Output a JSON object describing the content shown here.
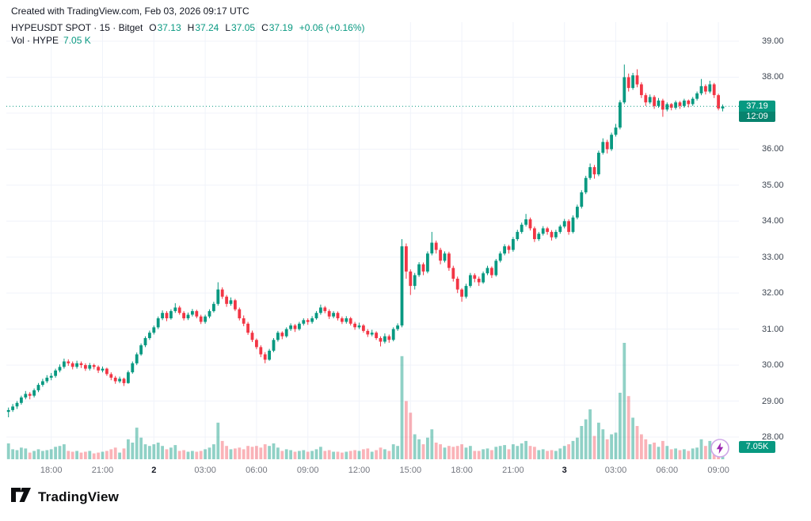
{
  "attribution": "Created with TradingView.com, Feb 03, 2026 09:17 UTC",
  "legend": {
    "symbol_title": "HYPEUSDT SPOT · 15 · Bitget",
    "open_label": "O",
    "open": "37.13",
    "high_label": "H",
    "high": "37.24",
    "low_label": "L",
    "low": "37.05",
    "close_label": "C",
    "close": "37.19",
    "change": "+0.06 (+0.16%)",
    "volume_label": "Vol · HYPE",
    "volume_value": "7.05 K"
  },
  "badges": {
    "last_price": "37.19",
    "countdown": "12:09",
    "volume": "7.05K"
  },
  "footer": {
    "logo_text": "TradingView"
  },
  "colors": {
    "up": "#089981",
    "down": "#f23645",
    "vol_up": "rgba(8,153,129,0.45)",
    "vol_down": "rgba(242,54,69,0.38)",
    "grid": "#f0f3fa",
    "last_price_line": "#089981"
  },
  "chart_data": {
    "type": "candlestick",
    "title": "HYPEUSDT SPOT · 15 · Bitget",
    "symbol": "HYPEUSDT",
    "exchange": "Bitget",
    "interval_minutes": 15,
    "last_price": 37.19,
    "last_volume_k": 7.05,
    "price_axis_visible_range": [
      27.4,
      39.5
    ],
    "price_ticks": [
      "39.00",
      "38.00",
      "37.00",
      "36.00",
      "35.00",
      "34.00",
      "33.00",
      "32.00",
      "31.00",
      "30.00",
      "29.00",
      "28.00"
    ],
    "time_ticks": [
      {
        "idx": 10,
        "label": "18:00",
        "bold": false
      },
      {
        "idx": 22,
        "label": "21:00",
        "bold": false
      },
      {
        "idx": 34,
        "label": "2",
        "bold": true
      },
      {
        "idx": 46,
        "label": "03:00",
        "bold": false
      },
      {
        "idx": 58,
        "label": "06:00",
        "bold": false
      },
      {
        "idx": 70,
        "label": "09:00",
        "bold": false
      },
      {
        "idx": 82,
        "label": "12:00",
        "bold": false
      },
      {
        "idx": 94,
        "label": "15:00",
        "bold": false
      },
      {
        "idx": 106,
        "label": "18:00",
        "bold": false
      },
      {
        "idx": 118,
        "label": "21:00",
        "bold": false
      },
      {
        "idx": 130,
        "label": "3",
        "bold": true
      },
      {
        "idx": 142,
        "label": "03:00",
        "bold": false
      },
      {
        "idx": 154,
        "label": "06:00",
        "bold": false
      },
      {
        "idx": 166,
        "label": "09:00",
        "bold": false
      }
    ],
    "columns": [
      "open",
      "high",
      "low",
      "close",
      "volume_k"
    ],
    "candles": [
      [
        28.7,
        28.82,
        28.55,
        28.75,
        9.5
      ],
      [
        28.75,
        28.92,
        28.7,
        28.85,
        6
      ],
      [
        28.85,
        29.0,
        28.78,
        28.95,
        5.5
      ],
      [
        28.95,
        29.15,
        28.9,
        29.1,
        7
      ],
      [
        29.1,
        29.28,
        29.05,
        29.2,
        6.5
      ],
      [
        29.2,
        29.25,
        29.05,
        29.15,
        4
      ],
      [
        29.15,
        29.35,
        29.1,
        29.3,
        5
      ],
      [
        29.3,
        29.5,
        29.25,
        29.45,
        6
      ],
      [
        29.45,
        29.62,
        29.4,
        29.55,
        5
      ],
      [
        29.55,
        29.72,
        29.5,
        29.65,
        5.5
      ],
      [
        29.65,
        29.78,
        29.58,
        29.7,
        6
      ],
      [
        29.7,
        29.9,
        29.65,
        29.85,
        7.5
      ],
      [
        29.85,
        30.02,
        29.8,
        29.95,
        8
      ],
      [
        29.95,
        30.18,
        29.9,
        30.1,
        9
      ],
      [
        30.1,
        30.16,
        29.98,
        30.05,
        5
      ],
      [
        30.05,
        30.1,
        29.88,
        29.95,
        4.5
      ],
      [
        29.95,
        30.12,
        29.9,
        30.05,
        5
      ],
      [
        30.05,
        30.1,
        29.92,
        30.0,
        4
      ],
      [
        30.0,
        30.05,
        29.84,
        29.9,
        4.5
      ],
      [
        29.9,
        30.06,
        29.85,
        30.0,
        5
      ],
      [
        30.0,
        30.04,
        29.88,
        29.95,
        3.5
      ],
      [
        29.95,
        29.99,
        29.78,
        29.85,
        4
      ],
      [
        29.85,
        29.96,
        29.8,
        29.9,
        4.5
      ],
      [
        29.9,
        29.93,
        29.7,
        29.75,
        5
      ],
      [
        29.75,
        29.8,
        29.58,
        29.65,
        6
      ],
      [
        29.65,
        29.7,
        29.48,
        29.55,
        7
      ],
      [
        29.55,
        29.68,
        29.5,
        29.62,
        4
      ],
      [
        29.62,
        29.65,
        29.42,
        29.5,
        6.5
      ],
      [
        29.5,
        29.85,
        29.48,
        29.8,
        12
      ],
      [
        29.8,
        30.1,
        29.76,
        30.05,
        10
      ],
      [
        30.05,
        30.35,
        30.0,
        30.3,
        19
      ],
      [
        30.3,
        30.6,
        30.26,
        30.55,
        13
      ],
      [
        30.55,
        30.8,
        30.5,
        30.75,
        9
      ],
      [
        30.75,
        30.96,
        30.7,
        30.9,
        8
      ],
      [
        30.9,
        31.1,
        30.85,
        31.05,
        9
      ],
      [
        31.05,
        31.35,
        31.0,
        31.3,
        10
      ],
      [
        31.3,
        31.52,
        31.25,
        31.45,
        8
      ],
      [
        31.45,
        31.5,
        31.22,
        31.3,
        6
      ],
      [
        31.3,
        31.55,
        31.26,
        31.5,
        7
      ],
      [
        31.5,
        31.72,
        31.45,
        31.6,
        8.5
      ],
      [
        31.6,
        31.65,
        31.4,
        31.45,
        5
      ],
      [
        31.45,
        31.5,
        31.24,
        31.3,
        5.5
      ],
      [
        31.3,
        31.46,
        31.25,
        31.4,
        4.5
      ],
      [
        31.4,
        31.56,
        31.35,
        31.5,
        5
      ],
      [
        31.5,
        31.54,
        31.3,
        31.35,
        4.5
      ],
      [
        31.35,
        31.4,
        31.14,
        31.2,
        5
      ],
      [
        31.2,
        31.4,
        31.15,
        31.35,
        6
      ],
      [
        31.35,
        31.55,
        31.3,
        31.5,
        7
      ],
      [
        31.5,
        31.76,
        31.46,
        31.7,
        9
      ],
      [
        31.7,
        32.3,
        31.65,
        32.1,
        22
      ],
      [
        32.1,
        32.16,
        31.84,
        31.9,
        11
      ],
      [
        31.9,
        31.95,
        31.62,
        31.7,
        8
      ],
      [
        31.7,
        31.88,
        31.65,
        31.8,
        6
      ],
      [
        31.8,
        31.84,
        31.5,
        31.55,
        6.5
      ],
      [
        31.55,
        31.6,
        31.24,
        31.3,
        7
      ],
      [
        31.3,
        31.38,
        31.08,
        31.15,
        6
      ],
      [
        31.15,
        31.2,
        30.84,
        30.9,
        8
      ],
      [
        30.9,
        30.96,
        30.64,
        30.7,
        7.5
      ],
      [
        30.7,
        30.74,
        30.44,
        30.5,
        8
      ],
      [
        30.5,
        30.55,
        30.22,
        30.3,
        7
      ],
      [
        30.3,
        30.36,
        30.05,
        30.15,
        9
      ],
      [
        30.15,
        30.45,
        30.12,
        30.4,
        8
      ],
      [
        30.4,
        30.75,
        30.36,
        30.7,
        9.5
      ],
      [
        30.7,
        30.95,
        30.65,
        30.9,
        7
      ],
      [
        30.9,
        30.94,
        30.72,
        30.8,
        5
      ],
      [
        30.8,
        31.05,
        30.76,
        31.0,
        6
      ],
      [
        31.0,
        31.16,
        30.95,
        31.1,
        5.5
      ],
      [
        31.1,
        31.14,
        30.92,
        31.0,
        4.5
      ],
      [
        31.0,
        31.2,
        30.96,
        31.15,
        5
      ],
      [
        31.15,
        31.3,
        31.1,
        31.25,
        5.5
      ],
      [
        31.25,
        31.3,
        31.12,
        31.2,
        4.5
      ],
      [
        31.2,
        31.36,
        31.15,
        31.3,
        5
      ],
      [
        31.3,
        31.5,
        31.26,
        31.45,
        6
      ],
      [
        31.45,
        31.68,
        31.4,
        31.6,
        7.5
      ],
      [
        31.6,
        31.64,
        31.44,
        31.5,
        5
      ],
      [
        31.5,
        31.55,
        31.28,
        31.35,
        5.5
      ],
      [
        31.35,
        31.5,
        31.3,
        31.45,
        4.5
      ],
      [
        31.45,
        31.49,
        31.24,
        31.3,
        4.5
      ],
      [
        31.3,
        31.35,
        31.14,
        31.2,
        4
      ],
      [
        31.2,
        31.36,
        31.15,
        31.3,
        4.5
      ],
      [
        31.3,
        31.34,
        31.1,
        31.15,
        5
      ],
      [
        31.15,
        31.2,
        30.98,
        31.05,
        5.5
      ],
      [
        31.05,
        31.18,
        31.0,
        31.1,
        5
      ],
      [
        31.1,
        31.14,
        30.9,
        30.95,
        6
      ],
      [
        30.95,
        31.0,
        30.78,
        30.85,
        6.5
      ],
      [
        30.85,
        30.98,
        30.8,
        30.9,
        4.5
      ],
      [
        30.9,
        30.94,
        30.7,
        30.75,
        5.5
      ],
      [
        30.75,
        30.8,
        30.52,
        30.65,
        7
      ],
      [
        30.65,
        30.88,
        30.6,
        30.8,
        6
      ],
      [
        30.8,
        30.85,
        30.62,
        30.7,
        5
      ],
      [
        30.7,
        31.05,
        30.66,
        31.0,
        9
      ],
      [
        31.0,
        31.16,
        30.95,
        31.1,
        8
      ],
      [
        31.1,
        33.5,
        31.05,
        33.3,
        62
      ],
      [
        33.3,
        33.38,
        32.4,
        32.6,
        35
      ],
      [
        32.6,
        32.66,
        31.95,
        32.2,
        28
      ],
      [
        32.2,
        32.56,
        32.1,
        32.5,
        15
      ],
      [
        32.5,
        32.86,
        32.45,
        32.8,
        12
      ],
      [
        32.8,
        32.85,
        32.5,
        32.6,
        9
      ],
      [
        32.6,
        33.16,
        32.55,
        33.1,
        13
      ],
      [
        33.1,
        33.7,
        33.05,
        33.4,
        18
      ],
      [
        33.4,
        33.46,
        33.1,
        33.2,
        10
      ],
      [
        33.2,
        33.26,
        32.8,
        32.9,
        9
      ],
      [
        32.9,
        33.16,
        32.85,
        33.1,
        7
      ],
      [
        33.1,
        33.15,
        32.62,
        32.7,
        8
      ],
      [
        32.7,
        32.76,
        32.32,
        32.4,
        7.5
      ],
      [
        32.4,
        32.46,
        32.0,
        32.1,
        8
      ],
      [
        32.1,
        32.14,
        31.76,
        31.9,
        9
      ],
      [
        31.9,
        32.26,
        31.85,
        32.2,
        7
      ],
      [
        32.2,
        32.56,
        32.15,
        32.5,
        8
      ],
      [
        32.5,
        32.55,
        32.3,
        32.4,
        5
      ],
      [
        32.4,
        32.46,
        32.2,
        32.3,
        5
      ],
      [
        32.3,
        32.6,
        32.26,
        32.55,
        6
      ],
      [
        32.55,
        32.76,
        32.5,
        32.7,
        6.5
      ],
      [
        32.7,
        32.74,
        32.42,
        32.5,
        5.5
      ],
      [
        32.5,
        32.95,
        32.46,
        32.9,
        7.5
      ],
      [
        32.9,
        33.16,
        32.85,
        33.1,
        8
      ],
      [
        33.1,
        33.36,
        33.05,
        33.3,
        8.5
      ],
      [
        33.3,
        33.34,
        33.1,
        33.2,
        6
      ],
      [
        33.2,
        33.56,
        33.15,
        33.5,
        9
      ],
      [
        33.5,
        33.76,
        33.45,
        33.7,
        8
      ],
      [
        33.7,
        33.96,
        33.65,
        33.9,
        9.5
      ],
      [
        33.9,
        34.2,
        33.85,
        34.05,
        11
      ],
      [
        34.05,
        34.1,
        33.74,
        33.8,
        8
      ],
      [
        33.8,
        33.85,
        33.42,
        33.5,
        7.5
      ],
      [
        33.5,
        33.7,
        33.45,
        33.65,
        5.5
      ],
      [
        33.65,
        33.86,
        33.6,
        33.8,
        6
      ],
      [
        33.8,
        33.84,
        33.62,
        33.7,
        5
      ],
      [
        33.7,
        33.75,
        33.46,
        33.55,
        5.5
      ],
      [
        33.55,
        33.76,
        33.5,
        33.7,
        5
      ],
      [
        33.7,
        33.9,
        33.65,
        33.85,
        6.5
      ],
      [
        33.85,
        34.06,
        33.8,
        34.0,
        8
      ],
      [
        34.0,
        34.05,
        33.62,
        33.7,
        9
      ],
      [
        33.7,
        34.16,
        33.66,
        34.1,
        11
      ],
      [
        34.1,
        34.46,
        34.05,
        34.4,
        13
      ],
      [
        34.4,
        34.86,
        34.35,
        34.8,
        20
      ],
      [
        34.8,
        35.26,
        34.75,
        35.2,
        24
      ],
      [
        35.2,
        35.6,
        35.15,
        35.5,
        30
      ],
      [
        35.5,
        35.56,
        35.18,
        35.3,
        14
      ],
      [
        35.3,
        35.96,
        35.25,
        35.9,
        22
      ],
      [
        35.9,
        36.3,
        35.85,
        36.2,
        18
      ],
      [
        36.2,
        36.26,
        35.88,
        36.0,
        12
      ],
      [
        36.0,
        36.46,
        35.95,
        36.4,
        15
      ],
      [
        36.4,
        36.7,
        36.35,
        36.6,
        16
      ],
      [
        36.6,
        37.36,
        36.55,
        37.3,
        40
      ],
      [
        37.3,
        38.35,
        37.25,
        38.0,
        70
      ],
      [
        38.0,
        38.1,
        37.6,
        37.7,
        38
      ],
      [
        37.7,
        38.12,
        37.65,
        38.05,
        25
      ],
      [
        38.05,
        38.22,
        37.72,
        37.8,
        20
      ],
      [
        37.8,
        37.86,
        37.42,
        37.5,
        15
      ],
      [
        37.5,
        37.56,
        37.2,
        37.3,
        12
      ],
      [
        37.3,
        37.52,
        37.25,
        37.45,
        9
      ],
      [
        37.45,
        37.5,
        37.12,
        37.2,
        10
      ],
      [
        37.2,
        37.42,
        37.15,
        37.35,
        7.5
      ],
      [
        37.35,
        37.4,
        36.9,
        37.1,
        11
      ],
      [
        37.1,
        37.3,
        37.05,
        37.25,
        8
      ],
      [
        37.25,
        37.28,
        37.08,
        37.15,
        6
      ],
      [
        37.15,
        37.35,
        37.1,
        37.3,
        6.5
      ],
      [
        37.3,
        37.34,
        37.12,
        37.2,
        5.5
      ],
      [
        37.2,
        37.4,
        37.15,
        37.35,
        6
      ],
      [
        37.35,
        37.38,
        37.16,
        37.25,
        5
      ],
      [
        37.25,
        37.45,
        37.2,
        37.4,
        6.5
      ],
      [
        37.4,
        37.6,
        37.35,
        37.55,
        7
      ],
      [
        37.55,
        37.95,
        37.5,
        37.75,
        12
      ],
      [
        37.75,
        37.8,
        37.52,
        37.6,
        8
      ],
      [
        37.6,
        37.9,
        37.55,
        37.8,
        11
      ],
      [
        37.8,
        37.84,
        37.42,
        37.5,
        9
      ],
      [
        37.5,
        37.54,
        37.08,
        37.13,
        8.5
      ],
      [
        37.13,
        37.24,
        37.05,
        37.19,
        7.05
      ]
    ]
  }
}
